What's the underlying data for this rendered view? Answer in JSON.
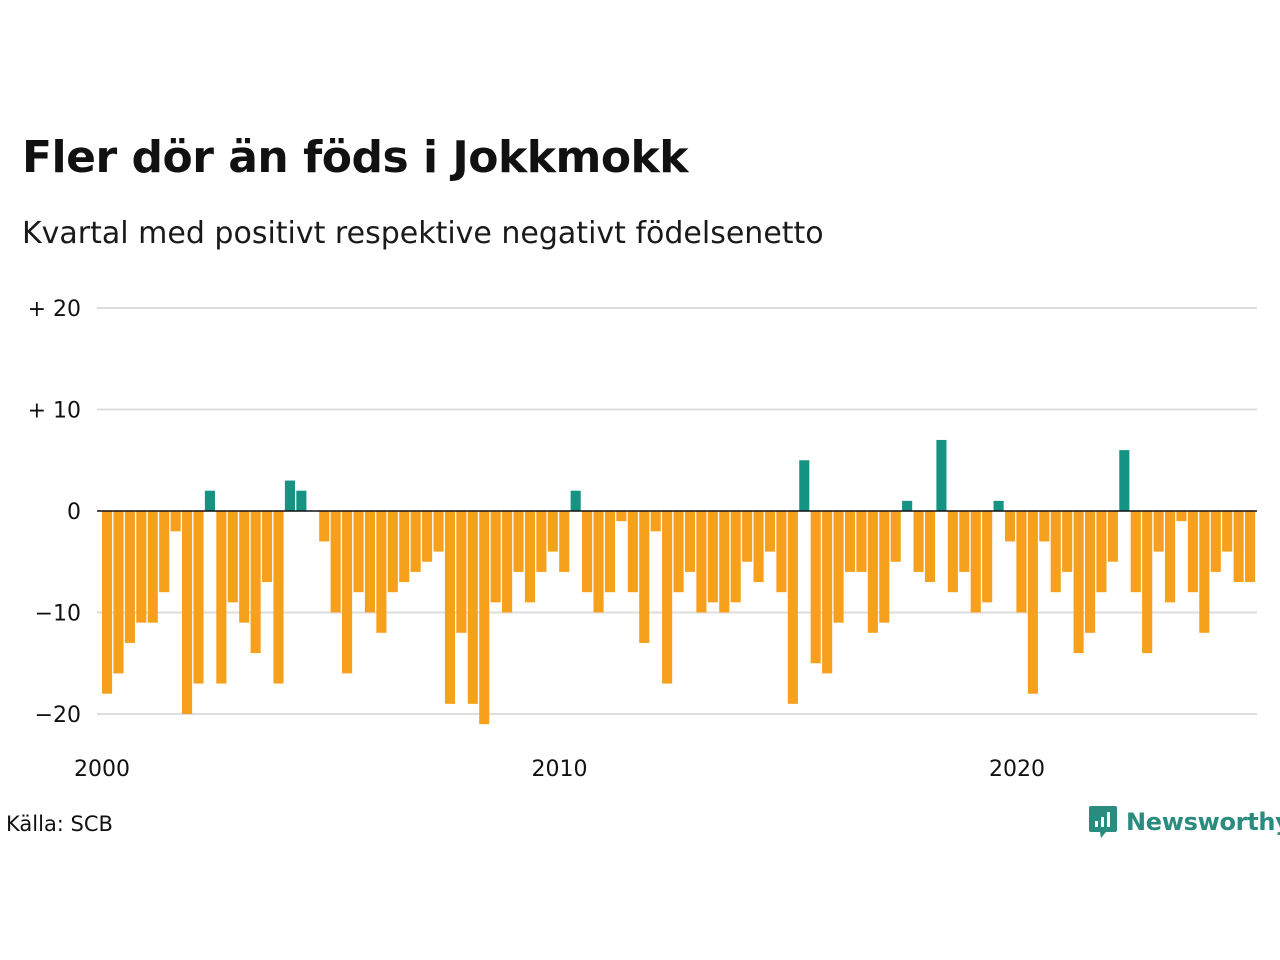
{
  "header": {
    "title": "Fler dör än föds i Jokkmokk",
    "subtitle": "Kvartal med positivt respektive negativt födelsenetto"
  },
  "footer": {
    "source": "Källa: SCB",
    "brand": "Newsworthy"
  },
  "colors": {
    "positive": "#159383",
    "negative": "#f7a01c",
    "grid": "#dddddd",
    "zero_line": "#111111",
    "brand": "#2a8b7f"
  },
  "chart_data": {
    "type": "bar",
    "start_year": 2000,
    "quarters_per_year": 4,
    "ylim": [
      -22,
      21
    ],
    "yticks": [
      {
        "value": 20,
        "label": "+ 20"
      },
      {
        "value": 10,
        "label": "+ 10"
      },
      {
        "value": 0,
        "label": "0"
      },
      {
        "value": -10,
        "label": "−10"
      },
      {
        "value": -20,
        "label": "−20"
      }
    ],
    "xticks": [
      {
        "year": 2000,
        "label": "2000"
      },
      {
        "year": 2010,
        "label": "2010"
      },
      {
        "year": 2020,
        "label": "2020"
      }
    ],
    "grid": true,
    "values": [
      -18,
      -16,
      -13,
      -11,
      -11,
      -8,
      -2,
      -20,
      -17,
      2,
      -17,
      -9,
      -11,
      -14,
      -7,
      -17,
      3,
      2,
      0,
      -3,
      -10,
      -16,
      -8,
      -10,
      -12,
      -8,
      -7,
      -6,
      -5,
      -4,
      -19,
      -12,
      -19,
      -21,
      -9,
      -10,
      -6,
      -9,
      -6,
      -4,
      -6,
      2,
      -8,
      -10,
      -8,
      -1,
      -8,
      -13,
      -2,
      -17,
      -8,
      -6,
      -10,
      -9,
      -10,
      -9,
      -5,
      -7,
      -4,
      -8,
      -19,
      5,
      -15,
      -16,
      -11,
      -6,
      -6,
      -12,
      -11,
      -5,
      1,
      -6,
      -7,
      7,
      -8,
      -6,
      -10,
      -9,
      1,
      -3,
      -10,
      -18,
      -3,
      -8,
      -6,
      -14,
      -12,
      -8,
      -5,
      6,
      -8,
      -14,
      -4,
      -9,
      -1,
      -8,
      -12,
      -6,
      -4,
      -7,
      -7
    ]
  }
}
